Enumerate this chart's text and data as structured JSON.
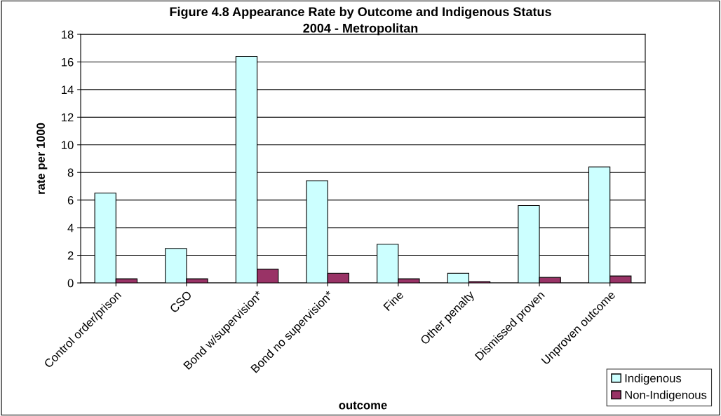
{
  "chart_data": {
    "type": "bar",
    "title": "Figure 4.8 Appearance Rate by Outcome and Indigenous Status\n2004 - Metropolitan",
    "xlabel": "outcome",
    "ylabel": "rate per 1000",
    "categories": [
      "Control order/prison",
      "CSO",
      "Bond w/supervision*",
      "Bond no supervision*",
      "Fine",
      "Other penalty",
      "Dismissed proven",
      "Unproven outcome"
    ],
    "series": [
      {
        "name": "Indigenous",
        "color": "#ccffff",
        "values": [
          6.5,
          2.5,
          16.4,
          7.4,
          2.8,
          0.7,
          5.6,
          8.4
        ]
      },
      {
        "name": "Non-Indigenous",
        "color": "#993366",
        "values": [
          0.3,
          0.3,
          1.0,
          0.7,
          0.3,
          0.1,
          0.4,
          0.5
        ]
      }
    ],
    "ylim": [
      0,
      18
    ],
    "yticks": [
      0,
      2,
      4,
      6,
      8,
      10,
      12,
      14,
      16,
      18
    ],
    "grid": "y",
    "legend": "bottom right"
  }
}
